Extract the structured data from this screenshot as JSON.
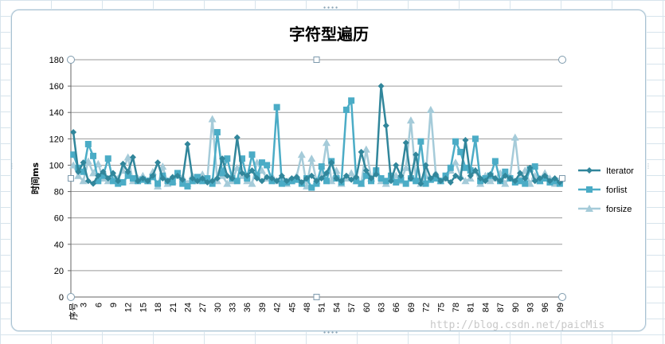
{
  "chart_data": {
    "type": "line",
    "title": "字符型遍历",
    "ylabel": "时间ms",
    "xlabel": "",
    "ylim": [
      0,
      180
    ],
    "yticks": [
      0,
      20,
      40,
      60,
      80,
      100,
      120,
      140,
      160,
      180
    ],
    "first_category_label": "序号",
    "categories": [
      1,
      2,
      3,
      4,
      5,
      6,
      7,
      8,
      9,
      10,
      11,
      12,
      13,
      14,
      15,
      16,
      17,
      18,
      19,
      20,
      21,
      22,
      23,
      24,
      25,
      26,
      27,
      28,
      29,
      30,
      31,
      32,
      33,
      34,
      35,
      36,
      37,
      38,
      39,
      40,
      41,
      42,
      43,
      44,
      45,
      46,
      47,
      48,
      49,
      50,
      51,
      52,
      53,
      54,
      55,
      56,
      57,
      58,
      59,
      60,
      61,
      62,
      63,
      64,
      65,
      66,
      67,
      68,
      69,
      70,
      71,
      72,
      73,
      74,
      75,
      76,
      77,
      78,
      79,
      80,
      81,
      82,
      83,
      84,
      85,
      86,
      87,
      88,
      89,
      90,
      91,
      92,
      93,
      94,
      95,
      96,
      97,
      98,
      99
    ],
    "xtick_labels_shown": [
      "序号",
      3,
      6,
      9,
      12,
      15,
      18,
      21,
      24,
      27,
      30,
      33,
      36,
      39,
      42,
      45,
      48,
      51,
      54,
      57,
      60,
      63,
      66,
      69,
      72,
      75,
      78,
      81,
      84,
      87,
      90,
      93,
      96,
      99
    ],
    "grid": "horizontal",
    "legend_position": "right",
    "series": [
      {
        "name": "Iterator",
        "color": "#31869b",
        "marker": "diamond",
        "values": [
          125,
          95,
          102,
          88,
          86,
          92,
          95,
          90,
          94,
          88,
          101,
          95,
          106,
          88,
          90,
          88,
          92,
          102,
          90,
          88,
          91,
          92,
          89,
          116,
          90,
          88,
          90,
          87,
          88,
          90,
          105,
          92,
          90,
          121,
          94,
          92,
          96,
          90,
          88,
          91,
          90,
          88,
          92,
          88,
          90,
          91,
          87,
          90,
          92,
          88,
          90,
          94,
          102,
          90,
          88,
          92,
          89,
          91,
          110,
          96,
          90,
          93,
          160,
          130,
          88,
          100,
          92,
          117,
          90,
          108,
          86,
          100,
          90,
          93,
          88,
          90,
          87,
          92,
          90,
          119,
          92,
          96,
          90,
          88,
          93,
          90,
          88,
          92,
          90,
          88,
          94,
          90,
          98,
          88,
          90,
          92,
          88,
          90,
          87
        ]
      },
      {
        "name": "forlist",
        "color": "#4bacc6",
        "marker": "square",
        "values": [
          108,
          98,
          95,
          116,
          107,
          88,
          92,
          105,
          88,
          86,
          87,
          92,
          90,
          88,
          89,
          88,
          91,
          86,
          92,
          88,
          87,
          94,
          86,
          84,
          88,
          91,
          88,
          90,
          86,
          125,
          94,
          105,
          90,
          88,
          105,
          90,
          108,
          92,
          102,
          100,
          88,
          144,
          86,
          87,
          88,
          89,
          86,
          90,
          83,
          86,
          99,
          88,
          103,
          90,
          87,
          142,
          149,
          88,
          86,
          92,
          88,
          96,
          90,
          88,
          92,
          87,
          89,
          86,
          90,
          88,
          118,
          86,
          89,
          90,
          88,
          92,
          98,
          118,
          110,
          98,
          96,
          120,
          88,
          90,
          92,
          103,
          88,
          95,
          90,
          87,
          88,
          86,
          97,
          99,
          88,
          90,
          87,
          88,
          86
        ]
      },
      {
        "name": "forsize",
        "color": "#a5cbd9",
        "marker": "triangle",
        "values": [
          100,
          92,
          88,
          103,
          94,
          101,
          90,
          88,
          93,
          90,
          96,
          106,
          88,
          90,
          92,
          88,
          95,
          84,
          99,
          86,
          88,
          92,
          91,
          86,
          92,
          88,
          93,
          90,
          135,
          88,
          92,
          86,
          88,
          98,
          92,
          88,
          86,
          102,
          96,
          90,
          92,
          88,
          90,
          86,
          88,
          92,
          108,
          84,
          105,
          88,
          92,
          117,
          88,
          96,
          86,
          90,
          94,
          88,
          86,
          112,
          90,
          96,
          88,
          86,
          90,
          92,
          88,
          98,
          134,
          90,
          86,
          92,
          142,
          94,
          88,
          90,
          96,
          102,
          92,
          88,
          90,
          96,
          86,
          92,
          88,
          90,
          94,
          86,
          92,
          121,
          88,
          96,
          86,
          92,
          88,
          94,
          90,
          86,
          89
        ]
      }
    ]
  },
  "watermark_text": "http://blog.csdn.net/paicMis"
}
